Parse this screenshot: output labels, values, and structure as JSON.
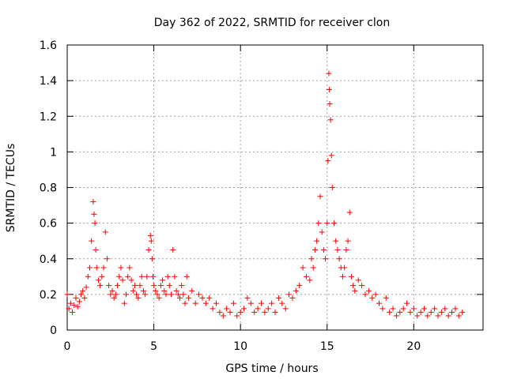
{
  "chart_data": {
    "type": "scatter",
    "title": "Day 362 of 2022, SRMTID for receiver clon",
    "xlabel": "GPS time / hours",
    "ylabel": "SRMTID / TECUs",
    "xlim": [
      0,
      24
    ],
    "ylim": [
      0,
      1.6
    ],
    "xticks": [
      0,
      5,
      10,
      15,
      20
    ],
    "xtick_labels": [
      "0",
      "5",
      "10",
      "15",
      "20"
    ],
    "yticks": [
      0,
      0.2,
      0.4,
      0.6,
      0.8,
      1.0,
      1.2,
      1.4,
      1.6
    ],
    "ytick_labels": [
      "0",
      "0.2",
      "0.4",
      "0.6",
      "0.8",
      "1",
      "1.2",
      "1.4",
      "1.6"
    ],
    "grid": true,
    "marker": "+",
    "color": "#ff0000",
    "series": [
      {
        "name": "SRMTID",
        "x": [
          0.0,
          0.1,
          0.2,
          0.3,
          0.4,
          0.5,
          0.6,
          0.7,
          0.8,
          0.9,
          1.0,
          1.1,
          1.2,
          1.3,
          1.4,
          1.5,
          1.55,
          1.6,
          1.65,
          1.7,
          1.8,
          1.9,
          2.0,
          2.1,
          2.2,
          2.3,
          2.4,
          2.5,
          2.6,
          2.7,
          2.8,
          2.9,
          3.0,
          3.1,
          3.2,
          3.3,
          3.4,
          3.5,
          3.6,
          3.7,
          3.8,
          3.9,
          4.0,
          4.1,
          4.2,
          4.3,
          4.4,
          4.5,
          4.6,
          4.7,
          4.8,
          4.85,
          4.9,
          4.95,
          5.0,
          5.1,
          5.2,
          5.3,
          5.4,
          5.5,
          5.6,
          5.7,
          5.8,
          5.9,
          6.0,
          6.1,
          6.2,
          6.3,
          6.4,
          6.5,
          6.6,
          6.7,
          6.8,
          6.9,
          7.0,
          7.2,
          7.4,
          7.6,
          7.8,
          8.0,
          8.2,
          8.4,
          8.6,
          8.8,
          9.0,
          9.2,
          9.4,
          9.6,
          9.8,
          10.0,
          10.2,
          10.4,
          10.6,
          10.8,
          11.0,
          11.2,
          11.4,
          11.6,
          11.8,
          12.0,
          12.2,
          12.4,
          12.6,
          12.8,
          13.0,
          13.2,
          13.4,
          13.6,
          13.8,
          14.0,
          14.1,
          14.2,
          14.3,
          14.4,
          14.5,
          14.6,
          14.7,
          14.8,
          14.9,
          15.0,
          15.05,
          15.1,
          15.12,
          15.15,
          15.2,
          15.25,
          15.3,
          15.4,
          15.5,
          15.6,
          15.7,
          15.8,
          15.9,
          16.0,
          16.1,
          16.2,
          16.3,
          16.4,
          16.5,
          16.6,
          16.8,
          17.0,
          17.2,
          17.4,
          17.6,
          17.8,
          18.0,
          18.2,
          18.4,
          18.6,
          18.8,
          19.0,
          19.2,
          19.4,
          19.6,
          19.8,
          20.0,
          20.2,
          20.4,
          20.6,
          20.8,
          21.0,
          21.2,
          21.4,
          21.6,
          21.8,
          22.0,
          22.2,
          22.4,
          22.6,
          22.8
        ],
        "y": [
          0.2,
          0.12,
          0.15,
          0.1,
          0.14,
          0.18,
          0.13,
          0.16,
          0.2,
          0.22,
          0.18,
          0.24,
          0.3,
          0.35,
          0.5,
          0.72,
          0.65,
          0.6,
          0.45,
          0.35,
          0.28,
          0.25,
          0.3,
          0.35,
          0.55,
          0.4,
          0.25,
          0.2,
          0.22,
          0.18,
          0.2,
          0.25,
          0.3,
          0.35,
          0.28,
          0.15,
          0.2,
          0.3,
          0.35,
          0.28,
          0.22,
          0.25,
          0.2,
          0.18,
          0.25,
          0.3,
          0.22,
          0.2,
          0.3,
          0.45,
          0.53,
          0.5,
          0.4,
          0.3,
          0.25,
          0.22,
          0.2,
          0.18,
          0.25,
          0.28,
          0.22,
          0.2,
          0.3,
          0.25,
          0.2,
          0.45,
          0.3,
          0.22,
          0.2,
          0.18,
          0.25,
          0.2,
          0.15,
          0.3,
          0.18,
          0.22,
          0.15,
          0.2,
          0.18,
          0.15,
          0.18,
          0.12,
          0.15,
          0.1,
          0.08,
          0.12,
          0.1,
          0.15,
          0.08,
          0.1,
          0.12,
          0.18,
          0.15,
          0.1,
          0.12,
          0.15,
          0.1,
          0.12,
          0.15,
          0.1,
          0.18,
          0.15,
          0.12,
          0.2,
          0.18,
          0.22,
          0.25,
          0.35,
          0.3,
          0.28,
          0.4,
          0.35,
          0.45,
          0.5,
          0.6,
          0.75,
          0.55,
          0.45,
          0.4,
          0.6,
          0.95,
          1.44,
          1.35,
          1.27,
          1.18,
          0.98,
          0.8,
          0.6,
          0.5,
          0.45,
          0.4,
          0.35,
          0.3,
          0.35,
          0.45,
          0.5,
          0.66,
          0.3,
          0.25,
          0.22,
          0.28,
          0.25,
          0.2,
          0.22,
          0.18,
          0.2,
          0.15,
          0.12,
          0.18,
          0.1,
          0.12,
          0.08,
          0.1,
          0.12,
          0.15,
          0.1,
          0.12,
          0.08,
          0.1,
          0.12,
          0.08,
          0.1,
          0.12,
          0.08,
          0.1,
          0.12,
          0.08,
          0.1,
          0.12,
          0.08,
          0.1
        ]
      }
    ]
  }
}
